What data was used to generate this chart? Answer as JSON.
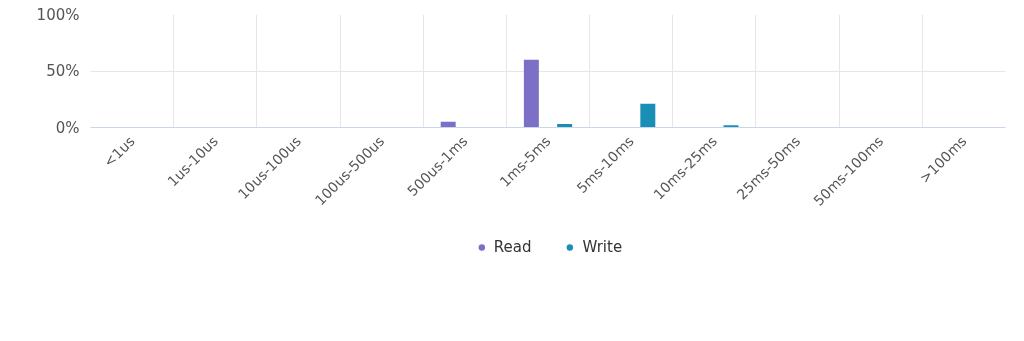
{
  "chart_data": {
    "type": "bar",
    "categories": [
      "<1us",
      "1us-10us",
      "10us-100us",
      "100us-500us",
      "500us-1ms",
      "1ms-5ms",
      "5ms-10ms",
      "10ms-25ms",
      "25ms-50ms",
      "50ms-100ms",
      ">100ms"
    ],
    "series": [
      {
        "name": "Read",
        "color": "#7b6fc6",
        "values": [
          0,
          0,
          0,
          0,
          5,
          60,
          0,
          0,
          0,
          0,
          0
        ]
      },
      {
        "name": "Write",
        "color": "#1a8fb5",
        "values": [
          0,
          0,
          0,
          0,
          0,
          3,
          21,
          2,
          0,
          0,
          0
        ]
      }
    ],
    "ylim": [
      0,
      100
    ],
    "yticks": [
      {
        "value": 0,
        "label": "0%"
      },
      {
        "value": 50,
        "label": "50%"
      },
      {
        "value": 100,
        "label": "100%"
      }
    ],
    "grid": true,
    "legend": "bottom"
  }
}
